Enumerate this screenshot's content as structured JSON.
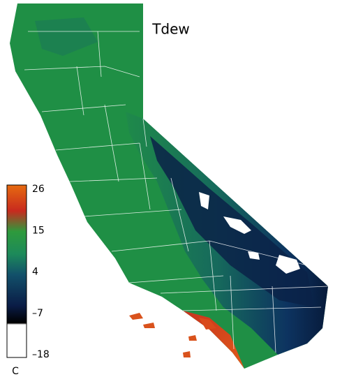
{
  "title": "Tdew",
  "colorbar": {
    "ticks": [
      26,
      15,
      4,
      {
        "value": -7,
        "label": "–7"
      },
      {
        "value": -18,
        "label": "–18"
      }
    ],
    "unit": "C"
  }
}
